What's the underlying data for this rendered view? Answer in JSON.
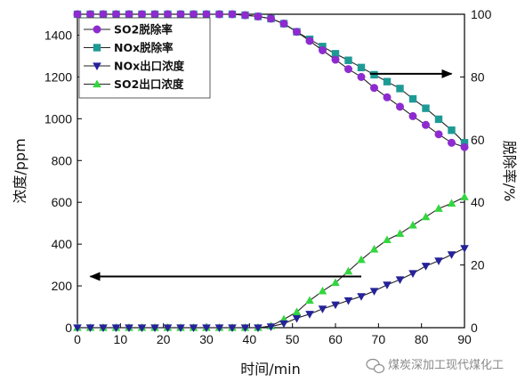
{
  "chart_data": {
    "type": "line",
    "xlabel": "时间/min",
    "ylabel_left": "浓度/ppm",
    "ylabel_right": "脱除率/%",
    "xlim": [
      0,
      90
    ],
    "ylim_left": [
      0,
      1500
    ],
    "ylim_right": [
      0,
      100
    ],
    "xticks": [
      0,
      10,
      20,
      30,
      40,
      50,
      60,
      70,
      80,
      90
    ],
    "yticks_left": [
      0,
      200,
      400,
      600,
      800,
      1000,
      1200,
      1400
    ],
    "yticks_right": [
      0,
      20,
      40,
      60,
      80,
      100
    ],
    "grid": false,
    "legend_position": "top-left",
    "arrows": [
      {
        "points_to": "right-axis",
        "x_from": 68,
        "x_to": 87,
        "y_right": 81
      },
      {
        "points_to": "left-axis",
        "x_from": 66,
        "x_to": 3,
        "y_left": 245
      }
    ],
    "series": [
      {
        "name": "SO2脱除率",
        "axis": "right",
        "marker": "circle",
        "color": "#8e2bd0",
        "x": [
          0,
          3,
          6,
          9,
          12,
          15,
          18,
          21,
          24,
          27,
          30,
          33,
          36,
          39,
          42,
          45,
          48,
          51,
          54,
          57,
          60,
          63,
          66,
          69,
          72,
          75,
          78,
          81,
          84,
          87,
          90
        ],
        "values": [
          100,
          100,
          100,
          100,
          100,
          100,
          100,
          100,
          100,
          100,
          100,
          100,
          100,
          99.7,
          99.3,
          98.6,
          97,
          94.4,
          91.5,
          88.5,
          85.5,
          82.5,
          80,
          76.5,
          73.5,
          70.5,
          67.5,
          64.7,
          61.7,
          59,
          57.6
        ]
      },
      {
        "name": "NOx脱除率",
        "axis": "right",
        "marker": "square",
        "color": "#1e9a95",
        "x": [
          0,
          3,
          6,
          9,
          12,
          15,
          18,
          21,
          24,
          27,
          30,
          33,
          36,
          39,
          42,
          45,
          48,
          51,
          54,
          57,
          60,
          63,
          66,
          69,
          72,
          75,
          78,
          81,
          84,
          87,
          90
        ],
        "values": [
          100,
          100,
          100,
          100,
          100,
          100,
          100,
          100,
          100,
          100,
          100,
          100,
          100,
          99.7,
          99.3,
          98.6,
          97,
          94.4,
          92,
          89.7,
          87.4,
          85.3,
          83,
          80.7,
          78.5,
          76.3,
          73,
          70,
          66.5,
          63,
          59
        ]
      },
      {
        "name": "NOx出口浓度",
        "axis": "left",
        "marker": "triangle-down",
        "color": "#25229a",
        "x": [
          0,
          3,
          6,
          9,
          12,
          15,
          18,
          21,
          24,
          27,
          30,
          33,
          36,
          39,
          42,
          45,
          48,
          51,
          54,
          57,
          60,
          63,
          66,
          69,
          72,
          75,
          78,
          81,
          84,
          87,
          90
        ],
        "values": [
          0,
          0,
          0,
          0,
          0,
          0,
          0,
          0,
          0,
          0,
          0,
          0,
          0,
          0,
          0,
          5,
          20,
          45,
          65,
          90,
          110,
          130,
          150,
          175,
          205,
          230,
          260,
          295,
          320,
          350,
          380
        ]
      },
      {
        "name": "SO2出口浓度",
        "axis": "left",
        "marker": "triangle-up",
        "color": "#33d63f",
        "x": [
          0,
          3,
          6,
          9,
          12,
          15,
          18,
          21,
          24,
          27,
          30,
          33,
          36,
          39,
          42,
          45,
          48,
          51,
          54,
          57,
          60,
          63,
          66,
          69,
          72,
          75,
          78,
          81,
          84,
          87,
          90
        ],
        "values": [
          0,
          0,
          0,
          0,
          0,
          0,
          0,
          0,
          0,
          0,
          0,
          0,
          0,
          0,
          0,
          8,
          40,
          75,
          130,
          175,
          215,
          270,
          325,
          375,
          420,
          450,
          490,
          530,
          570,
          595,
          625
        ]
      }
    ]
  },
  "watermark": {
    "text": "煤炭深加工现代煤化工",
    "icon": "wechat-icon"
  }
}
